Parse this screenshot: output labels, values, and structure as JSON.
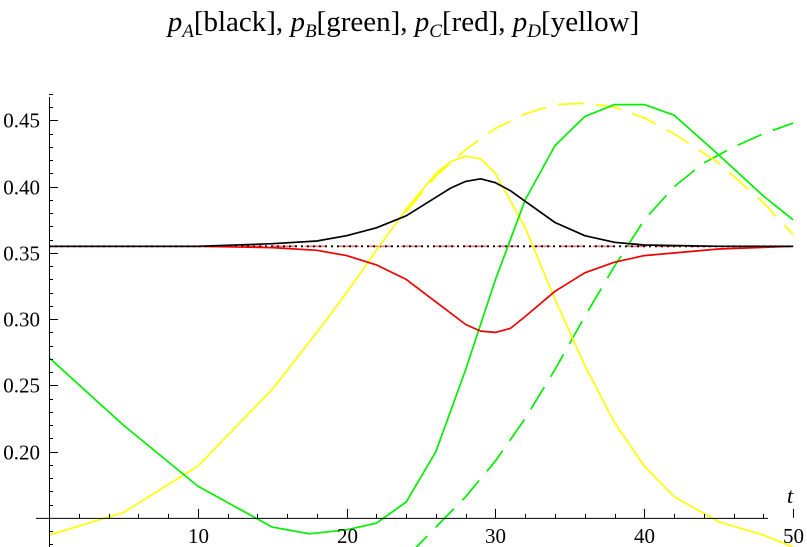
{
  "chart_data": {
    "type": "line",
    "title_parts": [
      {
        "sym": "p",
        "sub": "A",
        "tag": "[black]",
        "sep": ", "
      },
      {
        "sym": "p",
        "sub": "B",
        "tag": "[green]",
        "sep": ", "
      },
      {
        "sym": "p",
        "sub": "C",
        "tag": "[red]",
        "sep": ", "
      },
      {
        "sym": "p",
        "sub": "D",
        "tag": "[yellow]",
        "sep": ""
      }
    ],
    "xlabel": "t",
    "ylabel": "",
    "xlim": [
      0,
      51
    ],
    "ylim": [
      0.128,
      0.473
    ],
    "x_axis_at_y": 0.15,
    "xticks": [
      10,
      20,
      30,
      40,
      50
    ],
    "xtick_labels": [
      "10",
      "20",
      "30",
      "40",
      "50"
    ],
    "yticks": [
      0.2,
      0.25,
      0.3,
      0.35,
      0.4,
      0.45
    ],
    "ytick_labels": [
      "0.20",
      "0.25",
      "0.30",
      "0.35",
      "0.40",
      "0.45"
    ],
    "grid": false,
    "colors": {
      "black": "#000000",
      "green": "#00ee00",
      "red": "#ee0000",
      "yellow": "#ffff00",
      "red_dashed": "#ff7070"
    },
    "series": [
      {
        "key": "pA",
        "color": "#000000",
        "dash": "",
        "x": [
          0,
          5,
          10,
          15,
          18,
          20,
          22,
          24,
          26,
          27,
          28,
          29,
          30,
          31,
          32,
          34,
          36,
          38,
          40,
          45,
          50
        ],
        "y": [
          0.355,
          0.355,
          0.355,
          0.357,
          0.359,
          0.363,
          0.369,
          0.378,
          0.392,
          0.399,
          0.404,
          0.406,
          0.403,
          0.397,
          0.389,
          0.373,
          0.363,
          0.358,
          0.356,
          0.355,
          0.355
        ]
      },
      {
        "key": "pC",
        "color": "#ee0000",
        "dash": "",
        "x": [
          0,
          5,
          10,
          15,
          18,
          20,
          22,
          24,
          26,
          28,
          29,
          30,
          31,
          32,
          34,
          36,
          38,
          40,
          45,
          50
        ],
        "y": [
          0.355,
          0.355,
          0.355,
          0.354,
          0.352,
          0.348,
          0.341,
          0.33,
          0.313,
          0.296,
          0.291,
          0.29,
          0.293,
          0.302,
          0.321,
          0.335,
          0.343,
          0.348,
          0.353,
          0.355
        ]
      },
      {
        "key": "pB",
        "color": "#00ee00",
        "dash": "",
        "x": [
          0,
          5,
          10,
          15,
          17.5,
          20,
          22,
          24,
          26,
          28,
          30,
          32,
          34,
          36,
          38,
          40,
          42,
          45,
          48,
          50
        ],
        "y": [
          0.271,
          0.22,
          0.174,
          0.143,
          0.138,
          0.141,
          0.146,
          0.162,
          0.2,
          0.262,
          0.33,
          0.39,
          0.431,
          0.453,
          0.462,
          0.462,
          0.454,
          0.424,
          0.393,
          0.375
        ]
      },
      {
        "key": "pD",
        "color": "#ffff00",
        "dash": "",
        "x": [
          0,
          5,
          10,
          15,
          18,
          20,
          22,
          24,
          26,
          27,
          28,
          29,
          30,
          32,
          34,
          36,
          38,
          40,
          42,
          45,
          48,
          50
        ],
        "y": [
          0.137,
          0.154,
          0.189,
          0.247,
          0.29,
          0.32,
          0.352,
          0.383,
          0.41,
          0.419,
          0.423,
          0.421,
          0.41,
          0.369,
          0.315,
          0.265,
          0.222,
          0.189,
          0.166,
          0.147,
          0.137,
          0.128
        ]
      },
      {
        "key": "pD-dashed",
        "color": "#ffff00",
        "dash": "26 12",
        "x": [
          24,
          26,
          28,
          30,
          32,
          34,
          36,
          38,
          40,
          42,
          45,
          48,
          50
        ],
        "y": [
          0.381,
          0.408,
          0.428,
          0.444,
          0.455,
          0.462,
          0.463,
          0.46,
          0.452,
          0.44,
          0.418,
          0.388,
          0.364
        ]
      },
      {
        "key": "pB-dashed",
        "color": "#00ee00",
        "dash": "26 12",
        "x": [
          22,
          24,
          26,
          28,
          30,
          32,
          34,
          36,
          38,
          40,
          42,
          44,
          46,
          48,
          50
        ],
        "y": [
          0.108,
          0.12,
          0.143,
          0.166,
          0.193,
          0.225,
          0.262,
          0.302,
          0.34,
          0.375,
          0.4,
          0.418,
          0.43,
          0.44,
          0.448
        ]
      },
      {
        "key": "pC-dashed",
        "color": "#ff7070",
        "dash": "22 10",
        "x": [
          0,
          50
        ],
        "y": [
          0.355,
          0.355
        ]
      },
      {
        "key": "pA-dotted",
        "color": "#000000",
        "dash": "2 4",
        "x": [
          0,
          50
        ],
        "y": [
          0.355,
          0.355
        ]
      }
    ]
  }
}
